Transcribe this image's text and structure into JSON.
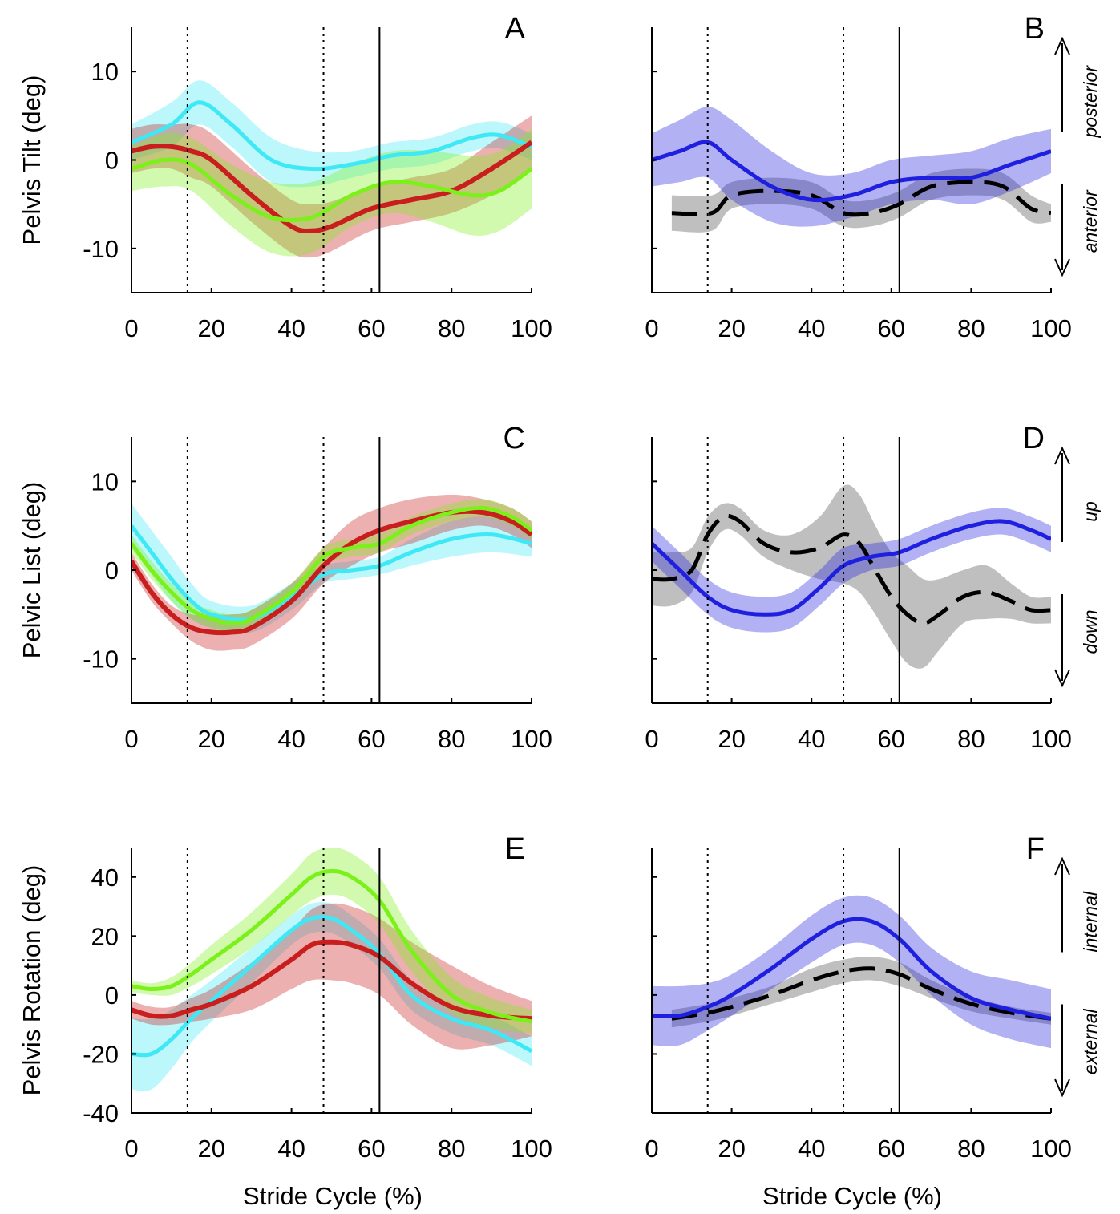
{
  "figure": {
    "xlabel": "Stride Cycle (%)"
  },
  "events": {
    "toe_off": 62,
    "opposite_events": [
      14,
      48
    ]
  },
  "colors": {
    "cyan": "#3ee8f5",
    "red": "#c81e1e",
    "green": "#7cf01a",
    "blue": "#1f1fe0",
    "black": "#000000",
    "gray_band": "#8a8a8a"
  },
  "chart_data": [
    {
      "id": "A",
      "type": "line",
      "letter": "A",
      "ylabel": "Pelvis Tilt (deg)",
      "xlim": [
        0,
        100
      ],
      "ylim": [
        -15,
        15
      ],
      "yticks": [
        -10,
        0,
        10
      ],
      "xticks": [
        0,
        20,
        40,
        60,
        80,
        100
      ],
      "ytick_labels": true,
      "series": [
        {
          "name": "cyan",
          "color": "#3ee8f5",
          "style": "solid",
          "width": 5,
          "x": [
            0,
            10,
            17,
            25,
            35,
            45,
            55,
            65,
            75,
            85,
            92,
            100
          ],
          "y": [
            2,
            4,
            6.5,
            4,
            0,
            -1,
            -0.5,
            0.5,
            1,
            2.5,
            2.8,
            1.5
          ],
          "sd": [
            2,
            2.5,
            2.5,
            2.5,
            2.5,
            2,
            1.5,
            1.5,
            1.5,
            1.5,
            1.5,
            1.5
          ]
        },
        {
          "name": "red",
          "color": "#c81e1e",
          "style": "solid",
          "width": 6,
          "x": [
            0,
            5,
            10,
            15,
            20,
            30,
            40,
            45,
            50,
            60,
            70,
            80,
            90,
            100
          ],
          "y": [
            1,
            1.5,
            1.5,
            1,
            0,
            -4,
            -7.5,
            -8,
            -7.5,
            -5.5,
            -4.5,
            -3.5,
            -1,
            2
          ],
          "sd": [
            2.5,
            2.5,
            2.5,
            3,
            3,
            3,
            3,
            3,
            2.8,
            2.5,
            2.5,
            2.5,
            3,
            3
          ]
        },
        {
          "name": "green",
          "color": "#7cf01a",
          "style": "solid",
          "width": 5,
          "x": [
            0,
            8,
            15,
            25,
            35,
            45,
            55,
            65,
            75,
            85,
            92,
            100
          ],
          "y": [
            -1,
            0,
            -0.5,
            -4,
            -6.5,
            -6.5,
            -4,
            -2.5,
            -3,
            -4,
            -3.5,
            -1
          ],
          "sd": [
            2.5,
            3,
            3,
            3.5,
            4,
            4,
            3.5,
            3.5,
            4,
            4.5,
            4.5,
            4.5
          ]
        }
      ],
      "annotations": []
    },
    {
      "id": "B",
      "type": "line",
      "letter": "B",
      "ylabel": "",
      "xlim": [
        0,
        100
      ],
      "ylim": [
        -15,
        15
      ],
      "yticks": [
        -10,
        0,
        10
      ],
      "xticks": [
        0,
        20,
        40,
        60,
        80,
        100
      ],
      "ytick_labels": false,
      "series": [
        {
          "name": "gray",
          "color": "#000000",
          "style": "dashed",
          "width": 5,
          "band_color": "#8a8a8a",
          "x": [
            5,
            15,
            20,
            30,
            40,
            48,
            55,
            62,
            70,
            80,
            88,
            95,
            100
          ],
          "y": [
            -6,
            -6,
            -4,
            -3.5,
            -4,
            -6,
            -6,
            -5,
            -3,
            -2.5,
            -3,
            -5.5,
            -6
          ],
          "sd": [
            2,
            2,
            1.5,
            1.5,
            1.5,
            1.5,
            1.5,
            1.5,
            1.5,
            1.5,
            1.5,
            1.5,
            1
          ]
        },
        {
          "name": "blue",
          "color": "#1f1fe0",
          "style": "solid",
          "width": 5,
          "x": [
            0,
            7,
            14,
            20,
            30,
            40,
            50,
            60,
            70,
            80,
            90,
            100
          ],
          "y": [
            0,
            1,
            2,
            0,
            -3,
            -4.5,
            -4,
            -2.5,
            -2,
            -2,
            -0.5,
            1
          ],
          "sd": [
            3,
            3.5,
            4,
            4.5,
            4,
            3,
            2.5,
            2.5,
            2.5,
            3,
            3,
            2.5
          ]
        }
      ],
      "annotations": [
        {
          "text": "posterior",
          "direction": "up"
        },
        {
          "text": "anterior",
          "direction": "down"
        }
      ]
    },
    {
      "id": "C",
      "type": "line",
      "letter": "C",
      "ylabel": "Pelvic List (deg)",
      "xlim": [
        0,
        100
      ],
      "ylim": [
        -15,
        15
      ],
      "yticks": [
        -10,
        0,
        10
      ],
      "xticks": [
        0,
        20,
        40,
        60,
        80,
        100
      ],
      "ytick_labels": true,
      "series": [
        {
          "name": "cyan",
          "color": "#3ee8f5",
          "style": "solid",
          "width": 5,
          "x": [
            0,
            5,
            10,
            15,
            20,
            30,
            40,
            48,
            55,
            62,
            70,
            80,
            90,
            100
          ],
          "y": [
            5,
            2,
            -1,
            -3.5,
            -5,
            -5.5,
            -3,
            -0.5,
            0,
            0.5,
            2,
            3.5,
            4,
            3
          ],
          "sd": [
            2.5,
            2.5,
            2.5,
            2,
            1.5,
            1.5,
            1.5,
            1,
            1,
            1,
            1.5,
            2,
            2,
            1.5
          ]
        },
        {
          "name": "red",
          "color": "#c81e1e",
          "style": "solid",
          "width": 6,
          "x": [
            0,
            5,
            10,
            15,
            20,
            25,
            30,
            40,
            48,
            55,
            62,
            70,
            80,
            88,
            95,
            100
          ],
          "y": [
            1,
            -2.5,
            -5,
            -6.5,
            -7,
            -7,
            -6.5,
            -3.5,
            0.5,
            3,
            4.5,
            5.5,
            6.5,
            6.5,
            5.5,
            4
          ],
          "sd": [
            1,
            1,
            1,
            1.5,
            2,
            2,
            2,
            2,
            2,
            2.5,
            2.5,
            2.5,
            2,
            1.5,
            1.5,
            1.5
          ]
        },
        {
          "name": "green",
          "color": "#7cf01a",
          "style": "solid",
          "width": 5,
          "x": [
            0,
            5,
            10,
            15,
            20,
            25,
            30,
            40,
            48,
            55,
            62,
            70,
            80,
            88,
            95,
            100
          ],
          "y": [
            3,
            0,
            -2.5,
            -4.5,
            -5.5,
            -6,
            -5.5,
            -2.5,
            1.5,
            2.5,
            3,
            5,
            6.5,
            7,
            6,
            4.5
          ],
          "sd": [
            1,
            1,
            1,
            1,
            1,
            1,
            1,
            1,
            1,
            1,
            1,
            1,
            1,
            1,
            1,
            1
          ]
        }
      ],
      "annotations": []
    },
    {
      "id": "D",
      "type": "line",
      "letter": "D",
      "ylabel": "",
      "xlim": [
        0,
        100
      ],
      "ylim": [
        -15,
        15
      ],
      "yticks": [
        -10,
        0,
        10
      ],
      "xticks": [
        0,
        20,
        40,
        60,
        80,
        100
      ],
      "ytick_labels": false,
      "series": [
        {
          "name": "gray",
          "color": "#000000",
          "style": "dashed",
          "width": 5,
          "band_color": "#8a8a8a",
          "x": [
            0,
            5,
            10,
            14,
            18,
            22,
            28,
            35,
            42,
            48,
            52,
            56,
            60,
            64,
            68,
            72,
            78,
            84,
            90,
            95,
            100
          ],
          "y": [
            -1,
            -1,
            0,
            4,
            6,
            5.5,
            3,
            2,
            2.5,
            4,
            3,
            0,
            -3,
            -5,
            -6,
            -5,
            -3,
            -2.5,
            -3.5,
            -4.5,
            -4.5
          ],
          "sd": [
            3,
            3,
            2.5,
            2,
            1.5,
            1.5,
            1.5,
            2,
            3.5,
            5.5,
            5.5,
            5,
            5,
            5.5,
            5,
            4,
            3,
            3,
            2,
            1.5,
            1.5
          ]
        },
        {
          "name": "blue",
          "color": "#1f1fe0",
          "style": "solid",
          "width": 5,
          "x": [
            0,
            7,
            14,
            20,
            28,
            35,
            42,
            48,
            55,
            62,
            70,
            80,
            88,
            95,
            100
          ],
          "y": [
            3,
            0,
            -3,
            -4.5,
            -5,
            -4.5,
            -2,
            0.5,
            1.5,
            2,
            3.5,
            5,
            5.5,
            4.5,
            3.5
          ],
          "sd": [
            2,
            2,
            2,
            2,
            2,
            2,
            2,
            2,
            1.5,
            1.5,
            1.5,
            1.5,
            1.5,
            1.5,
            1.5
          ]
        }
      ],
      "annotations": [
        {
          "text": "up",
          "direction": "up"
        },
        {
          "text": "down",
          "direction": "down"
        }
      ]
    },
    {
      "id": "E",
      "type": "line",
      "letter": "E",
      "ylabel": "Pelvis Rotation (deg)",
      "xlim": [
        0,
        100
      ],
      "ylim": [
        -40,
        50
      ],
      "yticks": [
        -40,
        -20,
        0,
        20,
        40
      ],
      "xticks": [
        0,
        20,
        40,
        60,
        80,
        100
      ],
      "ytick_labels": true,
      "series": [
        {
          "name": "cyan",
          "color": "#3ee8f5",
          "style": "solid",
          "width": 5,
          "x": [
            0,
            5,
            10,
            15,
            20,
            30,
            40,
            45,
            50,
            55,
            62,
            70,
            80,
            90,
            100
          ],
          "y": [
            -20,
            -20,
            -15,
            -8,
            -2,
            10,
            22,
            26,
            26,
            22,
            14,
            0,
            -8,
            -12,
            -19
          ],
          "sd": [
            12,
            12,
            10,
            8,
            7,
            6,
            5,
            5,
            5,
            5,
            5,
            5,
            5,
            5,
            5
          ]
        },
        {
          "name": "red",
          "color": "#c81e1e",
          "style": "solid",
          "width": 6,
          "x": [
            0,
            5,
            10,
            15,
            20,
            30,
            40,
            45,
            50,
            55,
            62,
            70,
            80,
            90,
            100
          ],
          "y": [
            -5,
            -7,
            -7,
            -5,
            -3,
            3,
            12,
            17,
            18,
            17,
            13,
            4,
            -4,
            -7,
            -8
          ],
          "sd": [
            3,
            3,
            3,
            4,
            5,
            8,
            10,
            12,
            13,
            13,
            13,
            14,
            14,
            10,
            6
          ]
        },
        {
          "name": "green",
          "color": "#7cf01a",
          "style": "solid",
          "width": 5,
          "x": [
            0,
            5,
            10,
            15,
            20,
            30,
            40,
            45,
            50,
            55,
            62,
            70,
            80,
            90,
            100
          ],
          "y": [
            3,
            2,
            3,
            7,
            12,
            22,
            34,
            40,
            42,
            40,
            32,
            15,
            0,
            -6,
            -9
          ],
          "sd": [
            2,
            2,
            3,
            4,
            5,
            6,
            7,
            8,
            8,
            8,
            8,
            7,
            6,
            5,
            4
          ]
        }
      ],
      "annotations": []
    },
    {
      "id": "F",
      "type": "line",
      "letter": "F",
      "ylabel": "",
      "xlim": [
        0,
        100
      ],
      "ylim": [
        -40,
        50
      ],
      "yticks": [
        -40,
        -20,
        0,
        20,
        40
      ],
      "xticks": [
        0,
        20,
        40,
        60,
        80,
        100
      ],
      "ytick_labels": false,
      "series": [
        {
          "name": "gray",
          "color": "#000000",
          "style": "dashed",
          "width": 5,
          "band_color": "#8a8a8a",
          "x": [
            5,
            14,
            20,
            30,
            40,
            48,
            55,
            62,
            70,
            80,
            90,
            100
          ],
          "y": [
            -8,
            -6,
            -4,
            0,
            5,
            8,
            9,
            7,
            2,
            -3,
            -6,
            -8
          ],
          "sd": [
            3,
            3,
            3,
            3,
            4,
            4,
            4,
            4,
            3,
            2.5,
            2,
            2
          ]
        },
        {
          "name": "blue",
          "color": "#1f1fe0",
          "style": "solid",
          "width": 5,
          "x": [
            0,
            7,
            14,
            20,
            30,
            40,
            48,
            55,
            62,
            70,
            80,
            90,
            100
          ],
          "y": [
            -7,
            -7,
            -4,
            0,
            9,
            19,
            25,
            25,
            19,
            8,
            -1,
            -5,
            -8
          ],
          "sd": [
            10,
            10,
            8,
            7,
            7,
            8,
            8,
            8,
            8,
            8,
            9,
            10,
            10
          ]
        }
      ],
      "annotations": [
        {
          "text": "internal",
          "direction": "up"
        },
        {
          "text": "external",
          "direction": "down"
        }
      ]
    }
  ]
}
